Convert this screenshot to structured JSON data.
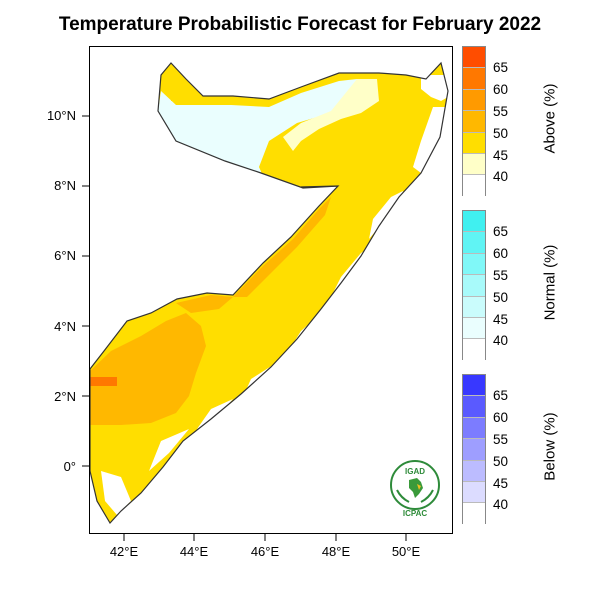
{
  "title": "Temperature Probabilistic Forecast for February 2022",
  "axes": {
    "y_ticks": [
      "10°N",
      "8°N",
      "6°N",
      "4°N",
      "2°N",
      "0°"
    ],
    "x_ticks": [
      "42°E",
      "44°E",
      "46°E",
      "48°E",
      "50°E"
    ]
  },
  "legend": {
    "above": {
      "title": "Above (%)",
      "levels": [
        "65",
        "60",
        "55",
        "50",
        "45",
        "40"
      ],
      "colors": [
        "#ff4d00",
        "#ff7800",
        "#ff9a00",
        "#ffb800",
        "#ffde00",
        "#ffffc8"
      ]
    },
    "normal": {
      "title": "Normal (%)",
      "levels": [
        "65",
        "60",
        "55",
        "50",
        "45",
        "40"
      ],
      "colors": [
        "#40f0f0",
        "#60f4f4",
        "#80f8f8",
        "#a8fafa",
        "#cafcfc",
        "#eafefe"
      ]
    },
    "below": {
      "title": "Below (%)",
      "levels": [
        "65",
        "60",
        "55",
        "50",
        "45",
        "40"
      ],
      "colors": [
        "#3838ff",
        "#5a5aff",
        "#7c7cff",
        "#9e9eff",
        "#bcbcff",
        "#dcdcff"
      ]
    }
  },
  "logo": {
    "top_text": "IGAD",
    "bottom_text": "ICPAC"
  }
}
